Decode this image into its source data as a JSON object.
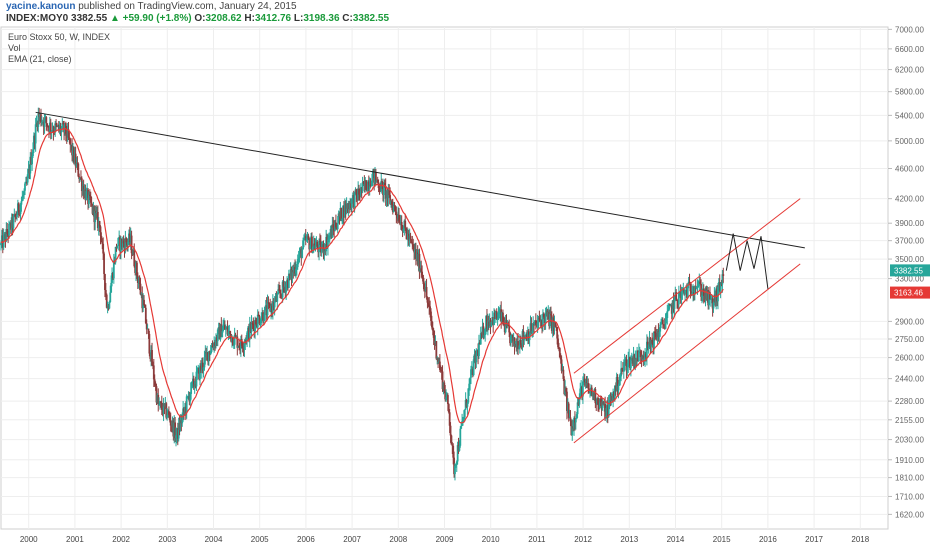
{
  "header": {
    "author": "yacine.kanoun",
    "published": "published on TradingView.com, January 24, 2015",
    "symbol": "INDEX:MOY0",
    "last": "3382.55",
    "arrow": "▲",
    "change": "+59.90 (+1.8%)",
    "open_label": "O:",
    "open": "3208.62",
    "high_label": "H:",
    "high": "3412.76",
    "low_label": "L:",
    "low": "3198.36",
    "close_label": "C:",
    "close": "3382.55"
  },
  "legend": {
    "title": "Euro Stoxx 50, W, INDEX",
    "vol": "Vol",
    "ema": "EMA (21, close)"
  },
  "colors": {
    "up": "#26a69a",
    "down": "#8c3b3b",
    "ema": "#e53935",
    "channel": "#e53935",
    "trendline": "#222222",
    "last_badge": "#26a69a",
    "ema_badge": "#e53935",
    "grid": "#eeeeee"
  },
  "chart_data": {
    "type": "candlestick",
    "series_name": "Euro Stoxx 50, W, INDEX",
    "x_unit": "year",
    "xlim": [
      1999.4,
      2018.6
    ],
    "ylim": [
      1550,
      7050
    ],
    "y_scale": "log",
    "grid": true,
    "x_ticks": [
      2000,
      2001,
      2002,
      2003,
      2004,
      2005,
      2006,
      2007,
      2008,
      2009,
      2010,
      2011,
      2012,
      2013,
      2014,
      2015,
      2016,
      2017,
      2018
    ],
    "y_ticks": [
      7000,
      6600,
      6200,
      5800,
      5400,
      5000,
      4600,
      4200,
      3900,
      3700,
      3500,
      3300,
      2900,
      2750,
      2600,
      2440,
      2280,
      2155,
      2030,
      1910,
      1810,
      1710,
      1620
    ],
    "price_anchors": [
      [
        1999.4,
        3650
      ],
      [
        1999.7,
        3950
      ],
      [
        1999.95,
        4350
      ],
      [
        2000.2,
        5400
      ],
      [
        2000.5,
        5200
      ],
      [
        2000.8,
        5150
      ],
      [
        2001.2,
        4300
      ],
      [
        2001.55,
        3850
      ],
      [
        2001.7,
        3000
      ],
      [
        2001.9,
        3650
      ],
      [
        2002.2,
        3700
      ],
      [
        2002.5,
        3000
      ],
      [
        2002.8,
        2250
      ],
      [
        2003.0,
        2200
      ],
      [
        2003.2,
        2050
      ],
      [
        2003.5,
        2350
      ],
      [
        2003.9,
        2650
      ],
      [
        2004.2,
        2850
      ],
      [
        2004.6,
        2700
      ],
      [
        2004.9,
        2900
      ],
      [
        2005.3,
        3050
      ],
      [
        2005.7,
        3350
      ],
      [
        2006.0,
        3700
      ],
      [
        2006.35,
        3600
      ],
      [
        2006.8,
        4050
      ],
      [
        2007.2,
        4300
      ],
      [
        2007.45,
        4500
      ],
      [
        2007.7,
        4300
      ],
      [
        2008.0,
        4000
      ],
      [
        2008.5,
        3400
      ],
      [
        2008.8,
        2700
      ],
      [
        2009.1,
        2200
      ],
      [
        2009.2,
        1850
      ],
      [
        2009.6,
        2500
      ],
      [
        2009.9,
        2900
      ],
      [
        2010.2,
        2950
      ],
      [
        2010.5,
        2700
      ],
      [
        2010.8,
        2800
      ],
      [
        2011.2,
        2950
      ],
      [
        2011.4,
        2850
      ],
      [
        2011.65,
        2250
      ],
      [
        2011.75,
        2100
      ],
      [
        2012.0,
        2400
      ],
      [
        2012.3,
        2300
      ],
      [
        2012.5,
        2200
      ],
      [
        2012.9,
        2550
      ],
      [
        2013.35,
        2650
      ],
      [
        2013.7,
        2850
      ],
      [
        2014.0,
        3100
      ],
      [
        2014.45,
        3250
      ],
      [
        2014.8,
        3050
      ],
      [
        2014.95,
        3200
      ],
      [
        2015.05,
        3382
      ]
    ],
    "ema": {
      "name": "EMA (21, close)",
      "period": 21,
      "last_value": "3163.46"
    },
    "last_price": "3382.55",
    "drawings": {
      "trendline": {
        "from": [
          2000.15,
          5450
        ],
        "to": [
          2016.8,
          3620
        ]
      },
      "channel_upper": {
        "from": [
          2011.8,
          2480
        ],
        "to": [
          2016.7,
          4200
        ]
      },
      "channel_lower": {
        "from": [
          2011.8,
          2010
        ],
        "to": [
          2016.7,
          3450
        ]
      },
      "projection": [
        [
          2015.1,
          3380
        ],
        [
          2015.25,
          3780
        ],
        [
          2015.4,
          3380
        ],
        [
          2015.55,
          3700
        ],
        [
          2015.7,
          3400
        ],
        [
          2015.85,
          3750
        ],
        [
          2016.0,
          3200
        ]
      ]
    }
  }
}
